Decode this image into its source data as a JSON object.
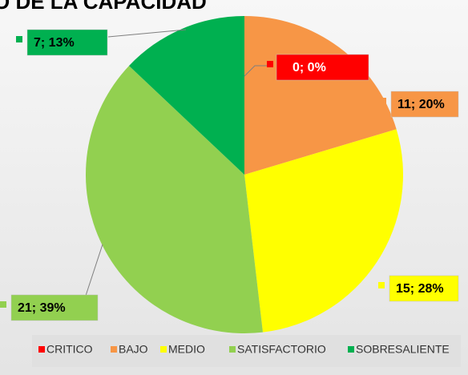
{
  "chart_data": {
    "type": "pie",
    "title": "O DE LA CAPACIDAD",
    "categories": [
      "CRITICO",
      "BAJO",
      "MEDIO",
      "SATISFACTORIO",
      "SOBRESALIENTE"
    ],
    "values": [
      0,
      11,
      15,
      21,
      7
    ],
    "value_labels": [
      "0; 0%",
      "11; 20%",
      "15; 28%",
      "21; 39%",
      "7; 13%"
    ],
    "colors": [
      "#ff0000",
      "#f79646",
      "#ffff00",
      "#92d050",
      "#00b050"
    ],
    "legend": "bottom"
  }
}
